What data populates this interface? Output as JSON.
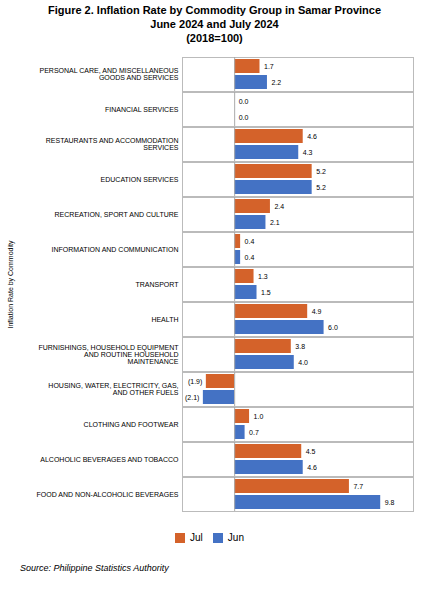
{
  "chart_data": {
    "type": "bar",
    "orientation": "horizontal",
    "title": "Figure 2. Inflation Rate by Commodity Group in Samar Province\nJune 2024 and July 2024\n(2018=100)",
    "ylabel": "Inflation Rate by Commodity",
    "source": "Source: Philippine Statistics Authority",
    "categories": [
      "FOOD AND NON-ALCOHOLIC BEVERAGES",
      "ALCOHOLIC BEVERAGES AND TOBACCO",
      "CLOTHING AND FOOTWEAR",
      "HOUSING, WATER, ELECTRICITY, GAS,\nAND OTHER FUELS",
      "FURNISHINGS, HOUSEHOLD EQUIPMENT\nAND ROUTINE HOUSEHOLD\nMAINTENANCE",
      "HEALTH",
      "TRANSPORT",
      "INFORMATION AND COMMUNICATION",
      "RECREATION, SPORT AND CULTURE",
      "EDUCATION SERVICES",
      "RESTAURANTS AND ACCOMMODATION\nSERVICES",
      "FINANCIAL SERVICES",
      "PERSONAL CARE, AND MISCELLANEOUS\nGOODS AND SERVICES"
    ],
    "series": [
      {
        "name": "Jul",
        "color": "#D4622A",
        "values": [
          7.7,
          4.5,
          1.0,
          -1.9,
          3.8,
          4.9,
          1.3,
          0.4,
          2.4,
          5.2,
          4.6,
          0.0,
          1.7
        ],
        "value_labels": [
          "7.7",
          "4.5",
          "1.0",
          "(1.9)",
          "3.8",
          "4.9",
          "1.3",
          "0.4",
          "2.4",
          "5.2",
          "4.6",
          "0.0",
          "1.7"
        ]
      },
      {
        "name": "Jun",
        "color": "#4472C4",
        "values": [
          9.8,
          4.6,
          0.7,
          -2.1,
          4.0,
          6.0,
          1.5,
          0.4,
          2.1,
          5.2,
          4.3,
          0.0,
          2.2
        ],
        "value_labels": [
          "9.8",
          "4.6",
          "0.7",
          "(2.1)",
          "4.0",
          "6.0",
          "1.5",
          "0.4",
          "2.1",
          "5.2",
          "4.3",
          "0.0",
          "2.2"
        ]
      }
    ],
    "xlim": [
      -3.5,
      12.0
    ],
    "data_labels": true,
    "tick_labels": "y",
    "grid": false,
    "legend": "bottom"
  }
}
